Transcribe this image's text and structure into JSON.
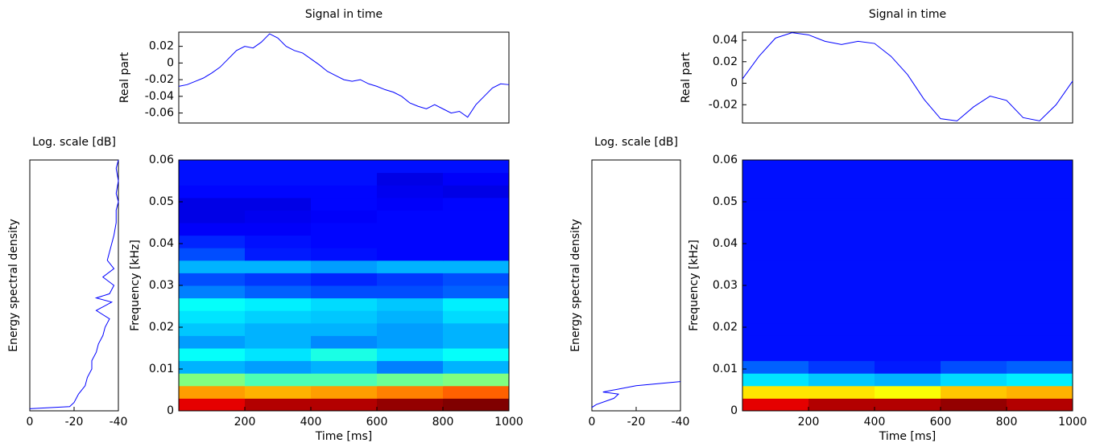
{
  "chart_data": [
    {
      "type": "line",
      "title": "Signal in time",
      "ylabel": "Real part",
      "x": [
        0,
        25,
        50,
        75,
        100,
        125,
        150,
        175,
        200,
        225,
        250,
        275,
        300,
        325,
        350,
        375,
        400,
        425,
        450,
        475,
        500,
        525,
        550,
        575,
        600,
        625,
        650,
        675,
        700,
        725,
        750,
        775,
        800,
        825,
        850,
        875,
        900,
        925,
        950,
        975,
        1000
      ],
      "values": [
        -0.028,
        -0.026,
        -0.022,
        -0.018,
        -0.012,
        -0.005,
        0.005,
        0.015,
        0.02,
        0.018,
        0.025,
        0.035,
        0.03,
        0.02,
        0.015,
        0.012,
        0.005,
        -0.002,
        -0.01,
        -0.015,
        -0.02,
        -0.022,
        -0.02,
        -0.025,
        -0.028,
        -0.032,
        -0.035,
        -0.04,
        -0.048,
        -0.052,
        -0.055,
        -0.05,
        -0.055,
        -0.06,
        -0.058,
        -0.065,
        -0.05,
        -0.04,
        -0.03,
        -0.025,
        -0.026
      ],
      "color": "#0000ff",
      "xlim": [
        0,
        1000
      ],
      "ylim": [
        -0.072,
        0.037
      ],
      "yticks": [
        -0.06,
        -0.04,
        -0.02,
        0,
        0.02
      ]
    },
    {
      "type": "esd",
      "title": "Log. scale [dB]",
      "ylabel": "Energy spectral density",
      "x": [
        0,
        -18,
        -20,
        -22,
        -25,
        -26,
        -28,
        -28,
        -30,
        -31,
        -33,
        -34,
        -36,
        -30,
        -37,
        -30,
        -36,
        -38,
        -33,
        -38,
        -35,
        -36,
        -37,
        -38,
        -39,
        -39,
        -40,
        -39,
        -40,
        -39,
        -40
      ],
      "y": [
        0.0005,
        0.001,
        0.002,
        0.004,
        0.006,
        0.008,
        0.01,
        0.012,
        0.014,
        0.016,
        0.018,
        0.02,
        0.022,
        0.024,
        0.026,
        0.027,
        0.028,
        0.03,
        0.032,
        0.034,
        0.036,
        0.038,
        0.04,
        0.042,
        0.045,
        0.048,
        0.05,
        0.052,
        0.055,
        0.058,
        0.06
      ],
      "color": "#0000ff",
      "xlim": [
        0,
        -40
      ],
      "ylim": [
        0,
        0.06
      ],
      "xticks": [
        0,
        -20,
        -40
      ]
    },
    {
      "type": "heatmap",
      "xlabel": "Time [ms]",
      "ylabel": "Frequency [kHz]",
      "colormap": "jet",
      "xlim": [
        0,
        1000
      ],
      "ylim": [
        0,
        0.06
      ],
      "xticks": [
        200,
        400,
        600,
        800,
        1000
      ],
      "yticks": [
        0,
        0.01,
        0.02,
        0.03,
        0.04,
        0.05,
        0.06
      ],
      "z": [
        [
          0.9,
          0.95,
          0.95,
          0.98,
          1.0
        ],
        [
          0.72,
          0.7,
          0.72,
          0.75,
          0.78
        ],
        [
          0.5,
          0.45,
          0.45,
          0.48,
          0.5
        ],
        [
          0.3,
          0.28,
          0.3,
          0.25,
          0.3
        ],
        [
          0.38,
          0.35,
          0.4,
          0.35,
          0.38
        ],
        [
          0.28,
          0.3,
          0.26,
          0.28,
          0.3
        ],
        [
          0.32,
          0.3,
          0.3,
          0.28,
          0.3
        ],
        [
          0.35,
          0.33,
          0.32,
          0.3,
          0.34
        ],
        [
          0.38,
          0.36,
          0.34,
          0.32,
          0.36
        ],
        [
          0.25,
          0.22,
          0.2,
          0.2,
          0.22
        ],
        [
          0.2,
          0.18,
          0.16,
          0.18,
          0.2
        ],
        [
          0.3,
          0.3,
          0.28,
          0.3,
          0.3
        ],
        [
          0.2,
          0.15,
          0.14,
          0.13,
          0.13
        ],
        [
          0.16,
          0.14,
          0.13,
          0.13,
          0.13
        ],
        [
          0.12,
          0.12,
          0.13,
          0.13,
          0.13
        ],
        [
          0.1,
          0.11,
          0.12,
          0.13,
          0.13
        ],
        [
          0.1,
          0.1,
          0.13,
          0.12,
          0.13
        ],
        [
          0.13,
          0.13,
          0.13,
          0.11,
          0.1
        ],
        [
          0.14,
          0.14,
          0.14,
          0.1,
          0.12
        ],
        [
          0.14,
          0.14,
          0.14,
          0.14,
          0.14
        ]
      ]
    },
    {
      "type": "line",
      "title": "Signal in time",
      "ylabel": "Real part",
      "x": [
        0,
        50,
        100,
        150,
        200,
        250,
        300,
        350,
        400,
        450,
        500,
        550,
        600,
        650,
        700,
        750,
        800,
        850,
        900,
        950,
        1000
      ],
      "values": [
        0.004,
        0.025,
        0.042,
        0.047,
        0.045,
        0.039,
        0.036,
        0.039,
        0.037,
        0.025,
        0.008,
        -0.015,
        -0.033,
        -0.035,
        -0.022,
        -0.012,
        -0.016,
        -0.032,
        -0.035,
        -0.02,
        0.002
      ],
      "color": "#0000ff",
      "xlim": [
        0,
        1000
      ],
      "ylim": [
        -0.037,
        0.0475
      ],
      "yticks": [
        -0.02,
        0,
        0.02,
        0.04
      ]
    },
    {
      "type": "esd",
      "title": "Log. scale [dB]",
      "ylabel": "Energy spectral density",
      "x": [
        0,
        -2,
        -10,
        -12,
        -5,
        -20,
        -40
      ],
      "y": [
        0.0008,
        0.0015,
        0.003,
        0.004,
        0.0045,
        0.006,
        0.007
      ],
      "color": "#0000ff",
      "xlim": [
        0,
        -40
      ],
      "ylim": [
        0,
        0.06
      ],
      "xticks": [
        0,
        -20,
        -40
      ]
    },
    {
      "type": "heatmap",
      "xlabel": "Time [ms]",
      "ylabel": "Frequency [kHz]",
      "colormap": "jet",
      "xlim": [
        0,
        1000
      ],
      "ylim": [
        0,
        0.06
      ],
      "xticks": [
        200,
        400,
        600,
        800,
        1000
      ],
      "yticks": [
        0,
        0.01,
        0.02,
        0.03,
        0.04,
        0.05,
        0.06
      ],
      "z": [
        [
          0.9,
          0.95,
          0.95,
          0.98,
          0.95
        ],
        [
          0.65,
          0.65,
          0.62,
          0.68,
          0.7
        ],
        [
          0.35,
          0.32,
          0.3,
          0.34,
          0.36
        ],
        [
          0.22,
          0.18,
          0.15,
          0.2,
          0.22
        ],
        [
          0.14,
          0.14,
          0.14,
          0.14,
          0.14
        ],
        [
          0.14,
          0.14,
          0.14,
          0.14,
          0.14
        ],
        [
          0.14,
          0.14,
          0.14,
          0.14,
          0.14
        ],
        [
          0.14,
          0.14,
          0.14,
          0.14,
          0.14
        ],
        [
          0.14,
          0.14,
          0.14,
          0.14,
          0.14
        ],
        [
          0.14,
          0.14,
          0.14,
          0.14,
          0.14
        ],
        [
          0.14,
          0.14,
          0.14,
          0.14,
          0.14
        ],
        [
          0.14,
          0.14,
          0.14,
          0.14,
          0.14
        ],
        [
          0.14,
          0.14,
          0.14,
          0.14,
          0.14
        ],
        [
          0.14,
          0.14,
          0.14,
          0.14,
          0.14
        ],
        [
          0.14,
          0.14,
          0.14,
          0.14,
          0.14
        ],
        [
          0.14,
          0.14,
          0.14,
          0.14,
          0.14
        ],
        [
          0.14,
          0.14,
          0.14,
          0.14,
          0.14
        ],
        [
          0.14,
          0.14,
          0.14,
          0.14,
          0.14
        ],
        [
          0.14,
          0.14,
          0.14,
          0.14,
          0.14
        ],
        [
          0.14,
          0.14,
          0.14,
          0.14,
          0.14
        ]
      ]
    }
  ]
}
